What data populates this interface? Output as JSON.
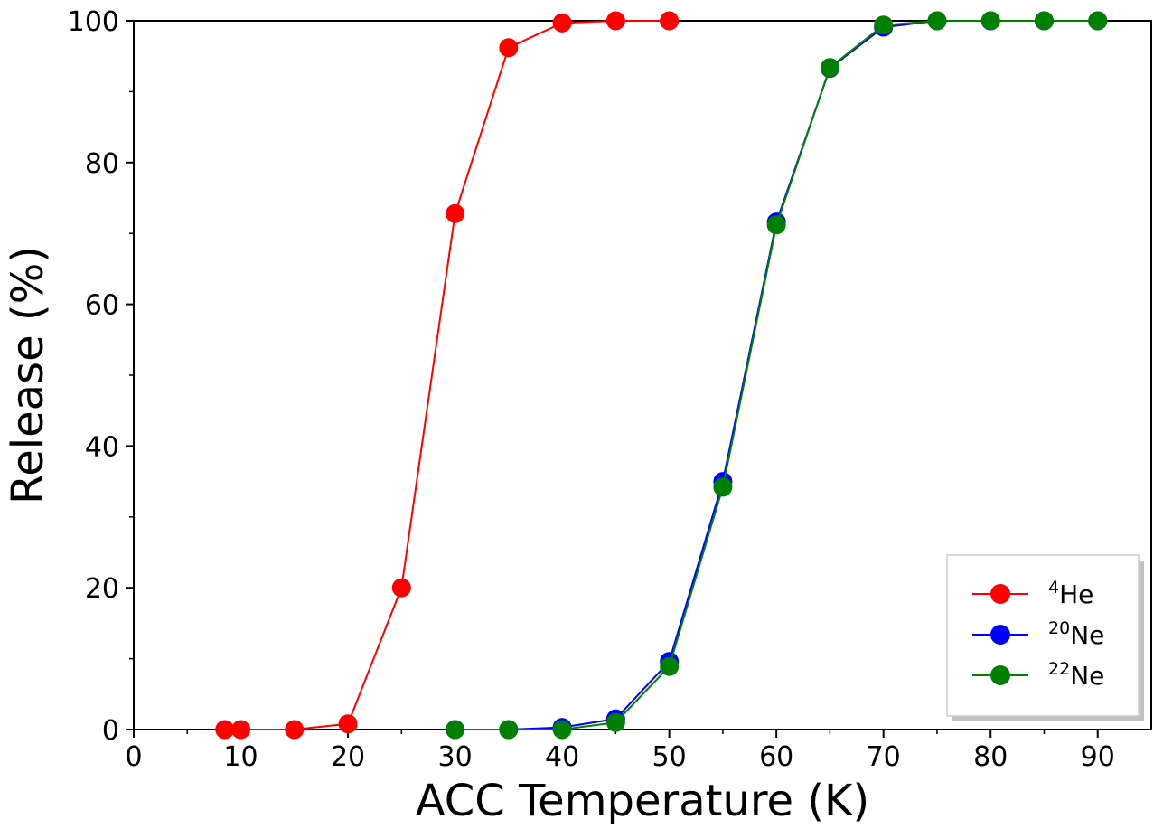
{
  "chart_data": {
    "type": "line",
    "xlabel": "ACC Temperature (K)",
    "ylabel": "Release (%)",
    "xlim": [
      0,
      95
    ],
    "ylim": [
      0,
      100
    ],
    "xticks": [
      0,
      10,
      20,
      30,
      40,
      50,
      60,
      70,
      80,
      90
    ],
    "yticks": [
      0,
      20,
      40,
      60,
      80,
      100
    ],
    "grid": false,
    "legend_position": "bottom-right",
    "series": [
      {
        "name": "4He",
        "name_mass": "4",
        "name_element": "He",
        "color": "#ff0000",
        "x": [
          8.5,
          10,
          15,
          20,
          25,
          30,
          35,
          40,
          45,
          50
        ],
        "y": [
          0,
          0,
          0,
          0.8,
          20,
          72.8,
          96.2,
          99.7,
          100,
          100
        ]
      },
      {
        "name": "20Ne",
        "name_mass": "20",
        "name_element": "Ne",
        "color": "#0000ff",
        "x": [
          30,
          35,
          40,
          45,
          50,
          55,
          60,
          65,
          70,
          75,
          80,
          85,
          90
        ],
        "y": [
          0,
          0,
          0.3,
          1.5,
          9.6,
          35,
          71.6,
          93.3,
          99.1,
          100,
          100,
          100,
          100
        ]
      },
      {
        "name": "22Ne",
        "name_mass": "22",
        "name_element": "Ne",
        "color": "#008000",
        "x": [
          30,
          35,
          40,
          45,
          50,
          55,
          60,
          65,
          70,
          75,
          80,
          85,
          90
        ],
        "y": [
          0,
          0,
          0,
          1,
          8.9,
          34.2,
          71.2,
          93.4,
          99.4,
          100,
          100,
          100,
          100
        ]
      }
    ]
  }
}
